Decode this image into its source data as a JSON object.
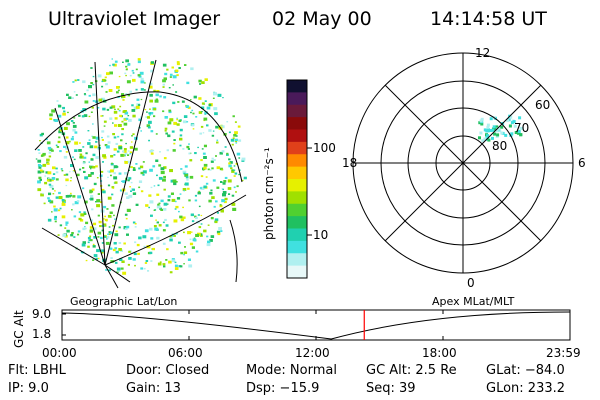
{
  "header": {
    "instrument": "Ultraviolet Imager",
    "date": "02 May 00",
    "time": "14:14:58 UT"
  },
  "colorbar": {
    "label": "photon cm⁻²s⁻¹",
    "ticks": [
      "100",
      "10"
    ],
    "colors": [
      "#101030",
      "#4a1a5a",
      "#6a1a3a",
      "#8a0a0a",
      "#b01010",
      "#e0401a",
      "#ff8a00",
      "#ffc800",
      "#e6f000",
      "#a0e000",
      "#50d030",
      "#20c060",
      "#20d0b0",
      "#40e0e0",
      "#b0f0f0",
      "#e8f8f8"
    ]
  },
  "polar": {
    "mlt_labels": {
      "top": "12",
      "right": "6",
      "left": "18",
      "bottom": "0"
    },
    "lat_labels": [
      "60",
      "70",
      "80"
    ]
  },
  "track": {
    "y_axis_label": "GC Alt",
    "y_ticks": [
      "9.0",
      "1.8"
    ],
    "left_caption": "Geographic Lat/Lon",
    "right_caption": "Apex MLat/MLT",
    "x_ticks": [
      "00:00",
      "06:00",
      "12:00",
      "18:00",
      "23:59"
    ],
    "current_time_fraction": 0.595,
    "line_color": "#000000",
    "marker_color": "#ff0000"
  },
  "info": {
    "row1": [
      "Flt: LBHL",
      "Door: Closed",
      "Mode: Normal",
      "GC Alt: 2.5 Re",
      "GLat: −84.0"
    ],
    "row2": [
      "IP:  9.0",
      "Gain: 13",
      "Dsp:  −15.9",
      "Seq: 39",
      "GLon: 233.2"
    ]
  }
}
